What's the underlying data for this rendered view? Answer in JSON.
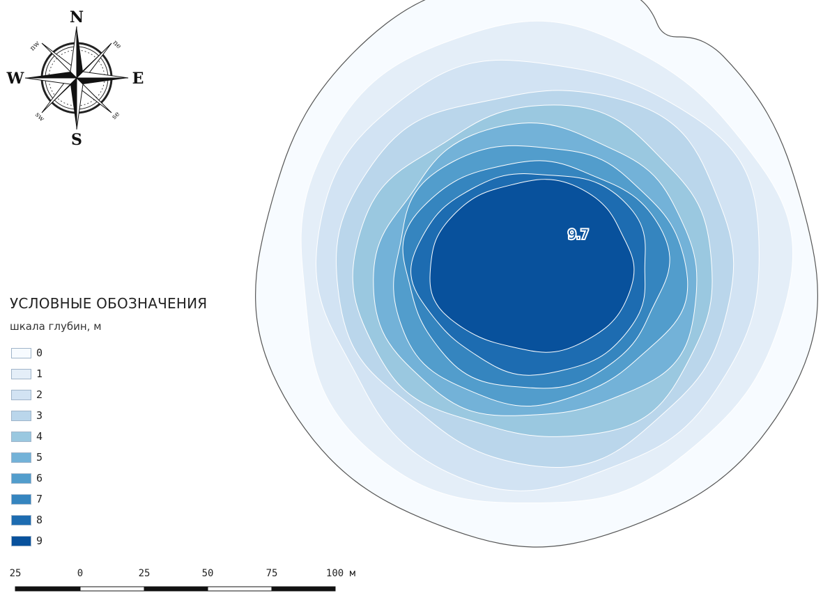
{
  "compass": {
    "north": "N",
    "south": "S",
    "east": "E",
    "west": "W",
    "nw": "nw",
    "ne": "ne",
    "sw": "sw",
    "se": "se"
  },
  "depth_label": "9.7",
  "legend": {
    "title": "УСЛОВНЫЕ ОБОЗНАЧЕНИЯ",
    "subtitle": "шкала глубин, м",
    "classes": [
      {
        "label": "0",
        "color": "#f7fbff"
      },
      {
        "label": "1",
        "color": "#e4eef8"
      },
      {
        "label": "2",
        "color": "#d2e3f3"
      },
      {
        "label": "3",
        "color": "#bad6eb"
      },
      {
        "label": "4",
        "color": "#9ac8e0"
      },
      {
        "label": "5",
        "color": "#73b2d8"
      },
      {
        "label": "6",
        "color": "#529dcc"
      },
      {
        "label": "7",
        "color": "#3585bf"
      },
      {
        "label": "8",
        "color": "#1d6cb1"
      },
      {
        "label": "9",
        "color": "#08519c"
      }
    ]
  },
  "scale_bar": {
    "labels": [
      "25",
      "0",
      "25",
      "50",
      "75",
      "100 м"
    ]
  },
  "colors": {
    "shoreline": "#555555",
    "contour": "#ffffff"
  }
}
